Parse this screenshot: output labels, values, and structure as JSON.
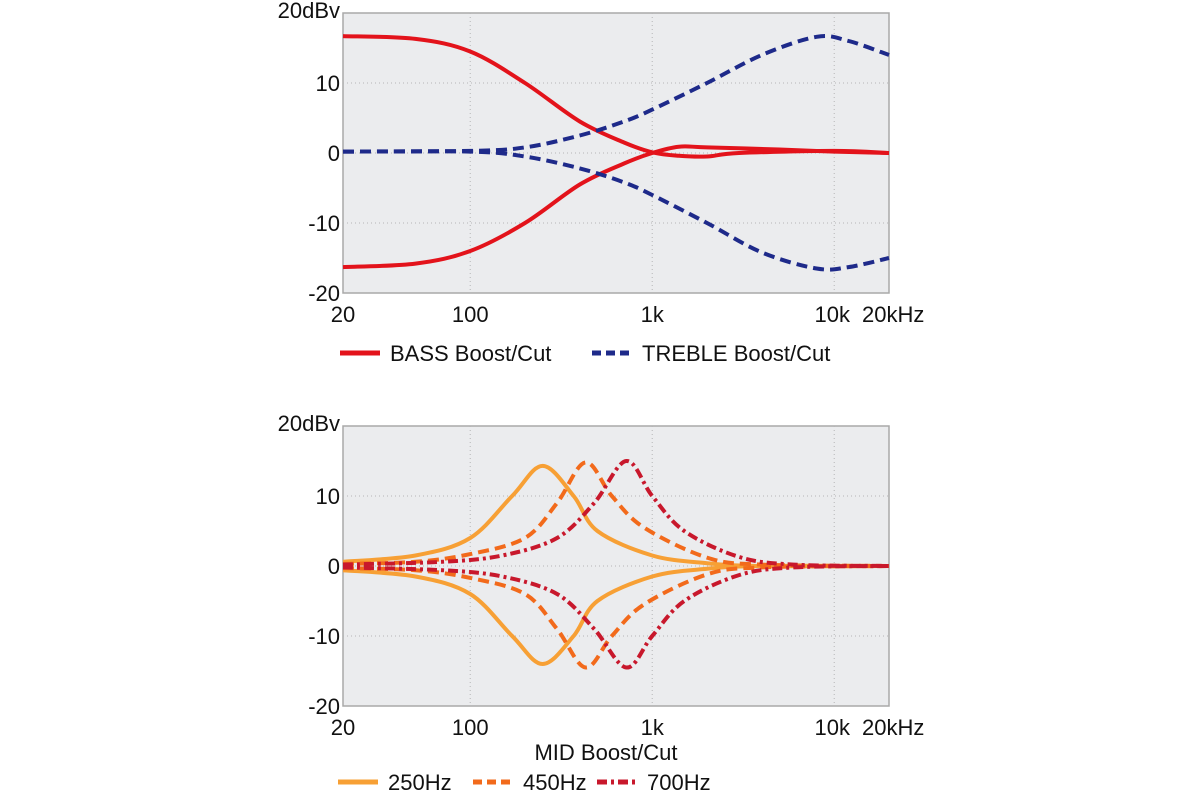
{
  "chart_data": [
    {
      "type": "line",
      "xscale": "log",
      "xlim": [
        20,
        20000
      ],
      "ylim": [
        -20,
        20
      ],
      "ylabel": "dBv",
      "xlabel": "",
      "yticks": [
        "-20",
        "-10",
        "0",
        "10",
        "20dBv"
      ],
      "ytick_values": [
        -20,
        -10,
        0,
        10,
        20
      ],
      "xticks": [
        "20",
        "100",
        "1k",
        "10k",
        "20kHz"
      ],
      "xtick_values": [
        20,
        100,
        1000,
        10000,
        20000
      ],
      "grid": true,
      "legend": [
        "BASS Boost/Cut",
        "TREBLE Boost/Cut"
      ],
      "legend_position": "bottom",
      "series": [
        {
          "name": "BASS Boost/Cut",
          "legend": 0,
          "color": "#e3131b",
          "dash": "solid",
          "points": [
            [
              20,
              16.7
            ],
            [
              50,
              16.3
            ],
            [
              100,
              14.5
            ],
            [
              200,
              10
            ],
            [
              400,
              4.5
            ],
            [
              700,
              1.5
            ],
            [
              1000,
              0.1
            ],
            [
              1400,
              -0.4
            ],
            [
              2000,
              -0.5
            ],
            [
              3000,
              0
            ],
            [
              10000,
              0.3
            ],
            [
              20000,
              0
            ]
          ]
        },
        {
          "name": "BASS Boost/Cut",
          "legend": 0,
          "color": "#e3131b",
          "dash": "solid",
          "points": [
            [
              20,
              -16.3
            ],
            [
              50,
              -15.8
            ],
            [
              100,
              -14
            ],
            [
              200,
              -10
            ],
            [
              400,
              -4.5
            ],
            [
              700,
              -1.5
            ],
            [
              1000,
              0
            ],
            [
              1400,
              0.9
            ],
            [
              2000,
              0.8
            ],
            [
              5000,
              0.5
            ],
            [
              10000,
              0.2
            ],
            [
              20000,
              0
            ]
          ]
        },
        {
          "name": "TREBLE Boost/Cut",
          "legend": 1,
          "color": "#1e2a8a",
          "dash": "dashed",
          "points": [
            [
              20,
              0.2
            ],
            [
              100,
              0.3
            ],
            [
              200,
              0.8
            ],
            [
              400,
              2.5
            ],
            [
              700,
              4.5
            ],
            [
              1000,
              6.2
            ],
            [
              2000,
              10
            ],
            [
              4000,
              14
            ],
            [
              8000,
              16.6
            ],
            [
              12000,
              16
            ],
            [
              20000,
              14
            ]
          ]
        },
        {
          "name": "TREBLE Boost/Cut",
          "legend": 1,
          "color": "#1e2a8a",
          "dash": "dashed",
          "points": [
            [
              20,
              0.2
            ],
            [
              100,
              0.2
            ],
            [
              200,
              -0.5
            ],
            [
              400,
              -2.2
            ],
            [
              700,
              -4.2
            ],
            [
              1000,
              -6
            ],
            [
              2000,
              -10
            ],
            [
              4000,
              -14.2
            ],
            [
              8000,
              -16.5
            ],
            [
              12000,
              -16.3
            ],
            [
              20000,
              -15
            ]
          ]
        }
      ]
    },
    {
      "type": "line",
      "xscale": "log",
      "xlim": [
        20,
        20000
      ],
      "ylim": [
        -20,
        20
      ],
      "ylabel": "dBv",
      "xlabel": "MID Boost/Cut",
      "yticks": [
        "-20",
        "-10",
        "0",
        "10",
        "20dBv"
      ],
      "ytick_values": [
        -20,
        -10,
        0,
        10,
        20
      ],
      "xticks": [
        "20",
        "100",
        "1k",
        "10k",
        "20kHz"
      ],
      "xtick_values": [
        20,
        100,
        1000,
        10000,
        20000
      ],
      "grid": true,
      "legend": [
        "250Hz",
        "450Hz",
        "700Hz"
      ],
      "legend_position": "bottom",
      "series": [
        {
          "name": "250Hz",
          "legend": 0,
          "color": "#f7a035",
          "dash": "solid",
          "points": [
            [
              20,
              0.6
            ],
            [
              50,
              1.5
            ],
            [
              100,
              4
            ],
            [
              170,
              10
            ],
            [
              250,
              14.3
            ],
            [
              370,
              10
            ],
            [
              500,
              5
            ],
            [
              1000,
              1.5
            ],
            [
              2000,
              0.4
            ],
            [
              4000,
              0
            ],
            [
              20000,
              0
            ]
          ]
        },
        {
          "name": "250Hz",
          "legend": 0,
          "color": "#f7a035",
          "dash": "solid",
          "points": [
            [
              20,
              -0.6
            ],
            [
              50,
              -1.5
            ],
            [
              100,
              -4
            ],
            [
              170,
              -10
            ],
            [
              250,
              -14
            ],
            [
              370,
              -10
            ],
            [
              500,
              -5
            ],
            [
              1000,
              -1.5
            ],
            [
              2000,
              -0.4
            ],
            [
              4000,
              0
            ],
            [
              20000,
              0
            ]
          ]
        },
        {
          "name": "450Hz",
          "legend": 1,
          "color": "#f26a1b",
          "dash": "dashed",
          "points": [
            [
              20,
              0.3
            ],
            [
              50,
              0.6
            ],
            [
              100,
              1.7
            ],
            [
              200,
              4
            ],
            [
              300,
              9
            ],
            [
              430,
              14.8
            ],
            [
              600,
              10
            ],
            [
              900,
              5.5
            ],
            [
              2000,
              1.2
            ],
            [
              4000,
              0.2
            ],
            [
              20000,
              0
            ]
          ]
        },
        {
          "name": "450Hz",
          "legend": 1,
          "color": "#f26a1b",
          "dash": "dashed",
          "points": [
            [
              20,
              -0.3
            ],
            [
              50,
              -0.6
            ],
            [
              100,
              -1.7
            ],
            [
              200,
              -4
            ],
            [
              300,
              -9
            ],
            [
              430,
              -14.5
            ],
            [
              600,
              -10
            ],
            [
              900,
              -5.5
            ],
            [
              2000,
              -1.2
            ],
            [
              4000,
              -0.2
            ],
            [
              20000,
              0
            ]
          ]
        },
        {
          "name": "700Hz",
          "legend": 2,
          "color": "#c8182c",
          "dash": "dashdot",
          "points": [
            [
              20,
              0.2
            ],
            [
              70,
              0.6
            ],
            [
              150,
              1.5
            ],
            [
              300,
              4
            ],
            [
              480,
              9
            ],
            [
              720,
              15
            ],
            [
              1000,
              10
            ],
            [
              1500,
              5
            ],
            [
              3000,
              1.3
            ],
            [
              6000,
              0.2
            ],
            [
              20000,
              0
            ]
          ]
        },
        {
          "name": "700Hz",
          "legend": 2,
          "color": "#c8182c",
          "dash": "dashdot",
          "points": [
            [
              20,
              -0.2
            ],
            [
              70,
              -0.6
            ],
            [
              150,
              -1.5
            ],
            [
              300,
              -4
            ],
            [
              480,
              -9
            ],
            [
              720,
              -14.5
            ],
            [
              1000,
              -10
            ],
            [
              1500,
              -5
            ],
            [
              3000,
              -1.3
            ],
            [
              6000,
              -0.2
            ],
            [
              20000,
              0
            ]
          ]
        }
      ]
    }
  ]
}
